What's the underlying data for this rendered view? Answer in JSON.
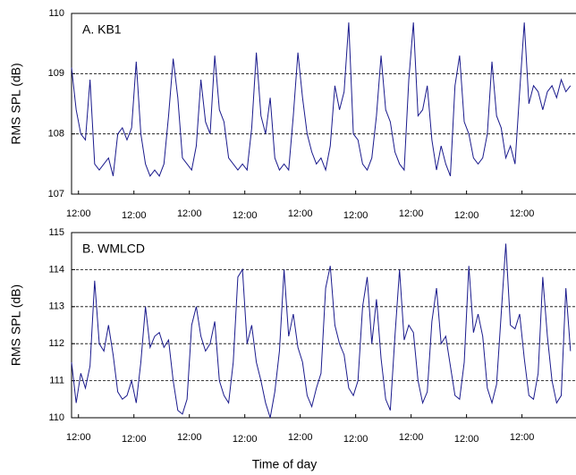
{
  "chart_data": [
    {
      "type": "line",
      "title": "A. KB1",
      "ylabel": "RMS SPL (dB)",
      "xlim": [
        0,
        218
      ],
      "ylim": [
        107,
        110
      ],
      "yticks": [
        107,
        108,
        109,
        110
      ],
      "grid": true,
      "xticks": [
        {
          "value": 3,
          "label": "12:00"
        },
        {
          "value": 27,
          "label": "12:00"
        },
        {
          "value": 51,
          "label": "12:00"
        },
        {
          "value": 75,
          "label": "12:00"
        },
        {
          "value": 99,
          "label": "12:00"
        },
        {
          "value": 123,
          "label": "12:00"
        },
        {
          "value": 147,
          "label": "12:00"
        },
        {
          "value": 171,
          "label": "12:00"
        },
        {
          "value": 195,
          "label": "12:00"
        }
      ],
      "x": [
        0,
        2,
        4,
        6,
        8,
        10,
        12,
        14,
        16,
        18,
        20,
        22,
        24,
        26,
        28,
        30,
        32,
        34,
        36,
        38,
        40,
        42,
        44,
        46,
        48,
        50,
        52,
        54,
        56,
        58,
        60,
        62,
        64,
        66,
        68,
        70,
        72,
        74,
        76,
        78,
        80,
        82,
        84,
        86,
        88,
        90,
        92,
        94,
        96,
        98,
        100,
        102,
        104,
        106,
        108,
        110,
        112,
        114,
        116,
        118,
        120,
        122,
        124,
        126,
        128,
        130,
        132,
        134,
        136,
        138,
        140,
        142,
        144,
        146,
        148,
        150,
        152,
        154,
        156,
        158,
        160,
        162,
        164,
        166,
        168,
        170,
        172,
        174,
        176,
        178,
        180,
        182,
        184,
        186,
        188,
        190,
        192,
        194,
        196,
        198,
        200,
        202,
        204,
        206,
        208,
        210,
        212,
        214,
        216
      ],
      "series": [
        {
          "name": "KB1",
          "color": "#1a1a8c",
          "values": [
            109.1,
            108.4,
            108.0,
            107.9,
            108.9,
            107.5,
            107.4,
            107.5,
            107.6,
            107.3,
            108.0,
            108.1,
            107.9,
            108.1,
            109.2,
            108.0,
            107.5,
            107.3,
            107.4,
            107.3,
            107.5,
            108.3,
            109.25,
            108.6,
            107.6,
            107.5,
            107.4,
            107.8,
            108.9,
            108.2,
            108.0,
            109.3,
            108.4,
            108.2,
            107.6,
            107.5,
            107.4,
            107.5,
            107.4,
            108.1,
            109.35,
            108.3,
            108.0,
            108.6,
            107.6,
            107.4,
            107.5,
            107.4,
            108.3,
            109.35,
            108.6,
            108.0,
            107.7,
            107.5,
            107.6,
            107.4,
            107.8,
            108.8,
            108.4,
            108.7,
            109.85,
            108.0,
            107.9,
            107.5,
            107.4,
            107.6,
            108.3,
            109.3,
            108.4,
            108.2,
            107.7,
            107.5,
            107.4,
            108.9,
            109.85,
            108.3,
            108.4,
            108.8,
            107.9,
            107.4,
            107.8,
            107.5,
            107.3,
            108.8,
            109.3,
            108.2,
            108.0,
            107.6,
            107.5,
            107.6,
            108.0,
            109.2,
            108.3,
            108.1,
            107.6,
            107.8,
            107.5,
            108.7,
            109.85,
            108.5,
            108.8,
            108.7,
            108.4,
            108.7,
            108.8,
            108.6,
            108.9,
            108.7,
            108.8
          ]
        }
      ]
    },
    {
      "type": "line",
      "title": "B. WMLCD",
      "ylabel": "RMS SPL (dB)",
      "xlabel": "Time of day",
      "xlim": [
        0,
        218
      ],
      "ylim": [
        110,
        115
      ],
      "yticks": [
        110,
        111,
        112,
        113,
        114,
        115
      ],
      "grid": true,
      "xticks": [
        {
          "value": 3,
          "label": "12:00"
        },
        {
          "value": 27,
          "label": "12:00"
        },
        {
          "value": 51,
          "label": "12:00"
        },
        {
          "value": 75,
          "label": "12:00"
        },
        {
          "value": 99,
          "label": "12:00"
        },
        {
          "value": 123,
          "label": "12:00"
        },
        {
          "value": 147,
          "label": "12:00"
        },
        {
          "value": 171,
          "label": "12:00"
        },
        {
          "value": 195,
          "label": "12:00"
        }
      ],
      "x": [
        0,
        2,
        4,
        6,
        8,
        10,
        12,
        14,
        16,
        18,
        20,
        22,
        24,
        26,
        28,
        30,
        32,
        34,
        36,
        38,
        40,
        42,
        44,
        46,
        48,
        50,
        52,
        54,
        56,
        58,
        60,
        62,
        64,
        66,
        68,
        70,
        72,
        74,
        76,
        78,
        80,
        82,
        84,
        86,
        88,
        90,
        92,
        94,
        96,
        98,
        100,
        102,
        104,
        106,
        108,
        110,
        112,
        114,
        116,
        118,
        120,
        122,
        124,
        126,
        128,
        130,
        132,
        134,
        136,
        138,
        140,
        142,
        144,
        146,
        148,
        150,
        152,
        154,
        156,
        158,
        160,
        162,
        164,
        166,
        168,
        170,
        172,
        174,
        176,
        178,
        180,
        182,
        184,
        186,
        188,
        190,
        192,
        194,
        196,
        198,
        200,
        202,
        204,
        206,
        208,
        210,
        212,
        214,
        216
      ],
      "series": [
        {
          "name": "WMLCD",
          "color": "#1a1a8c",
          "values": [
            111.5,
            110.4,
            111.2,
            110.8,
            111.4,
            113.7,
            112.0,
            111.8,
            112.5,
            111.7,
            110.7,
            110.5,
            110.6,
            111.0,
            110.4,
            111.5,
            113.0,
            111.9,
            112.2,
            112.3,
            111.9,
            112.1,
            111.0,
            110.2,
            110.1,
            110.5,
            112.5,
            113.0,
            112.2,
            111.8,
            112.0,
            112.6,
            111.0,
            110.6,
            110.4,
            111.5,
            113.8,
            114.0,
            112.0,
            112.5,
            111.5,
            111.0,
            110.4,
            110.0,
            110.7,
            111.8,
            114.0,
            112.2,
            112.8,
            111.9,
            111.5,
            110.6,
            110.3,
            110.8,
            111.2,
            113.5,
            114.1,
            112.5,
            112.0,
            111.7,
            110.8,
            110.6,
            111.0,
            113.0,
            113.8,
            112.0,
            113.2,
            111.6,
            110.5,
            110.2,
            112.2,
            114.0,
            112.1,
            112.5,
            112.3,
            111.0,
            110.4,
            110.7,
            112.6,
            113.5,
            112.0,
            112.2,
            111.4,
            110.6,
            110.5,
            111.5,
            114.1,
            112.3,
            112.8,
            112.2,
            110.8,
            110.4,
            110.9,
            112.8,
            114.7,
            112.5,
            112.4,
            112.8,
            111.6,
            110.6,
            110.5,
            111.2,
            113.8,
            112.2,
            111.0,
            110.4,
            110.6,
            113.5,
            111.8
          ]
        }
      ]
    }
  ]
}
